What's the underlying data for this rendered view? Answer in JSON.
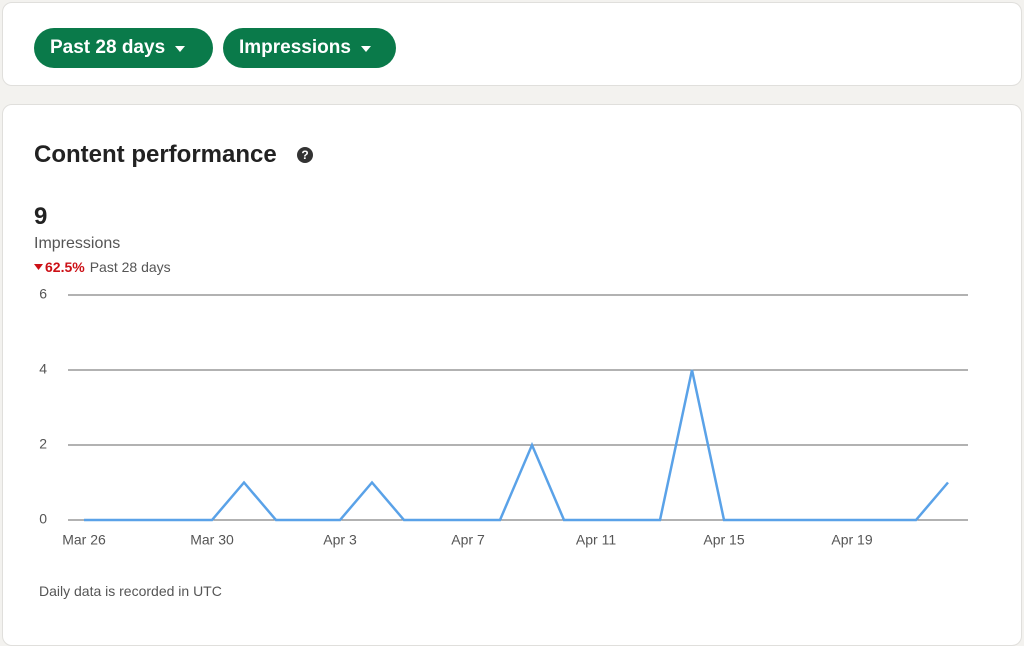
{
  "filters": [
    "Past 28 days",
    "Impressions"
  ],
  "card": {
    "title": "Content performance",
    "total": "9",
    "metric": "Impressions",
    "change": "62.5%",
    "period": "Past 28 days",
    "footnote": "Daily data is recorded in UTC"
  },
  "chart_data": {
    "type": "line",
    "categories": [
      "Mar 26",
      null,
      null,
      null,
      "Mar 30",
      null,
      null,
      null,
      "Apr 3",
      null,
      null,
      null,
      "Apr 7",
      null,
      null,
      null,
      "Apr 11",
      null,
      null,
      null,
      "Apr 15",
      null,
      null,
      null,
      "Apr 19",
      null,
      null,
      null
    ],
    "series": [
      {
        "name": "Impressions",
        "color": "#5aa2e8",
        "values": [
          0,
          0,
          0,
          0,
          0,
          1,
          0,
          0,
          0,
          1,
          0,
          0,
          0,
          0,
          2,
          0,
          0,
          0,
          0,
          4,
          0,
          0,
          0,
          0,
          0,
          0,
          0,
          1
        ]
      }
    ],
    "ylim": [
      0,
      6
    ],
    "yticks": [
      0,
      2,
      4,
      6
    ],
    "grid": true
  }
}
